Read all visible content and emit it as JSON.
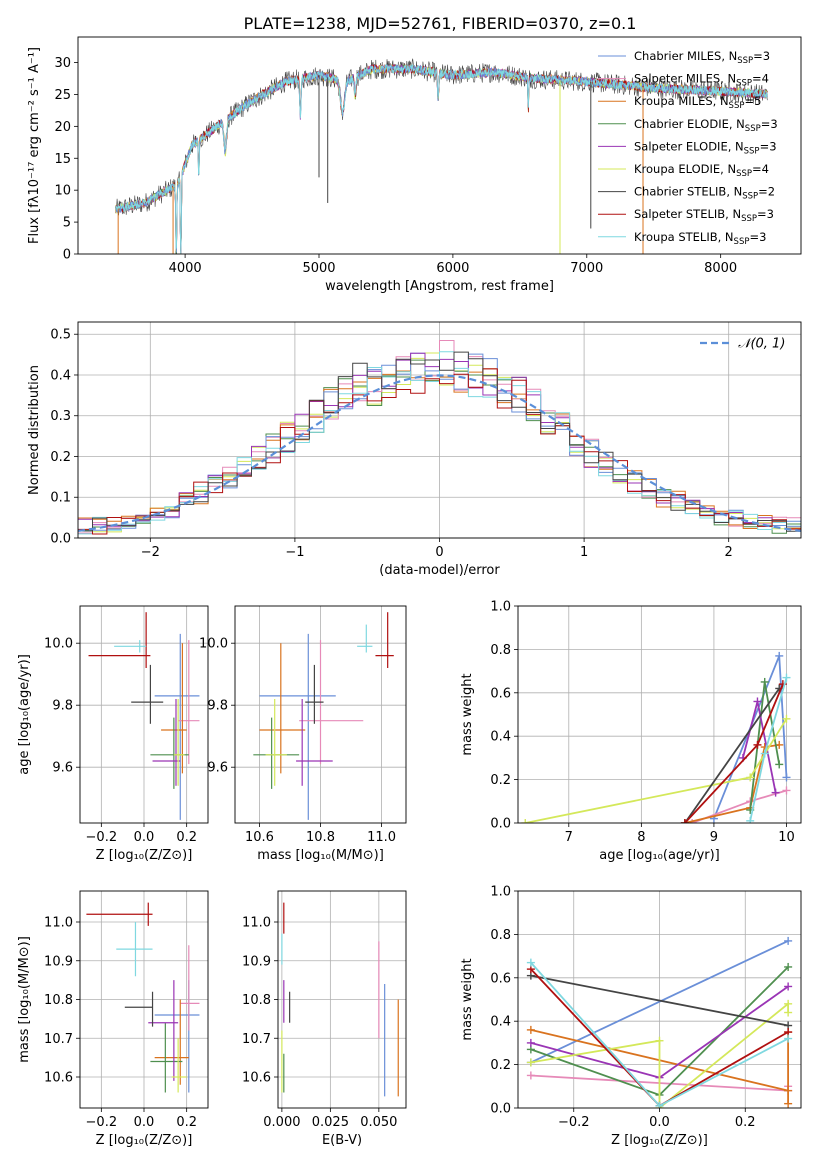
{
  "title": "PLATE=1238, MJD=52761, FIBERID=0370, z=0.1",
  "colors": {
    "Chabrier MILES": "#6a8fd8",
    "Salpeter MILES": "#e68ab8",
    "Kroupa MILES": "#d9731f",
    "Chabrier ELODIE": "#4f8f4f",
    "Salpeter ELODIE": "#9a35b5",
    "Kroupa ELODIE": "#d4e85a",
    "Chabrier STELIB": "#444444",
    "Salpeter STELIB": "#b01010",
    "Kroupa STELIB": "#7fd8e0"
  },
  "chart_data": [
    {
      "id": "spectrum",
      "type": "line",
      "title": "PLATE=1238, MJD=52761, FIBERID=0370, z=0.1",
      "xlabel": "wavelength [Angstrom, rest frame]",
      "ylabel": "Flux [fλ10⁻¹⁷ erg cm⁻² s⁻¹ A⁻¹]",
      "xlim": [
        3200,
        8600
      ],
      "ylim": [
        0,
        34
      ],
      "xticks": [
        4000,
        5000,
        6000,
        7000,
        8000
      ],
      "yticks": [
        0,
        5,
        10,
        15,
        20,
        25,
        30
      ],
      "grid": false,
      "legend_position": "top-right",
      "legend": [
        {
          "name": "Chabrier MILES",
          "n": "3"
        },
        {
          "name": "Salpeter MILES",
          "n": "4"
        },
        {
          "name": "Kroupa MILES",
          "n": "5"
        },
        {
          "name": "Chabrier ELODIE",
          "n": "3"
        },
        {
          "name": "Salpeter ELODIE",
          "n": "3"
        },
        {
          "name": "Kroupa ELODIE",
          "n": "4"
        },
        {
          "name": "Chabrier STELIB",
          "n": "2"
        },
        {
          "name": "Salpeter STELIB",
          "n": "3"
        },
        {
          "name": "Kroupa STELIB",
          "n": "3"
        }
      ],
      "continuum": [
        [
          3480,
          7
        ],
        [
          3700,
          8
        ],
        [
          3950,
          11
        ],
        [
          4050,
          17
        ],
        [
          4300,
          21
        ],
        [
          4500,
          24
        ],
        [
          4750,
          27
        ],
        [
          5000,
          28
        ],
        [
          5200,
          27
        ],
        [
          5400,
          29
        ],
        [
          5700,
          29
        ],
        [
          6000,
          28
        ],
        [
          6300,
          28.5
        ],
        [
          6600,
          27.5
        ],
        [
          7000,
          27
        ],
        [
          7500,
          26
        ],
        [
          8000,
          25.5
        ],
        [
          8350,
          25
        ]
      ],
      "dips": [
        [
          3934,
          3,
          20
        ],
        [
          3968,
          3,
          20
        ],
        [
          4102,
          3,
          6
        ],
        [
          4300,
          10,
          5
        ],
        [
          4861,
          5,
          6
        ],
        [
          5175,
          15,
          5
        ],
        [
          5270,
          5,
          3
        ],
        [
          5890,
          5,
          4
        ],
        [
          6563,
          3,
          5
        ]
      ],
      "spikes": [
        {
          "x": 3500,
          "low": 0
        },
        {
          "x": 3910,
          "low": 0
        },
        {
          "x": 5000,
          "low": 12
        },
        {
          "x": 5065,
          "low": 8
        },
        {
          "x": 6800,
          "low": 0
        },
        {
          "x": 7030,
          "low": 4
        },
        {
          "x": 7420,
          "low": 0
        }
      ]
    },
    {
      "id": "residuals",
      "type": "histogram",
      "xlabel": "(data-model)/error",
      "ylabel": "Normed distribution",
      "xlim": [
        -2.5,
        2.5
      ],
      "ylim": [
        0,
        0.53
      ],
      "xticks": [
        -2,
        -1,
        0,
        1,
        2
      ],
      "yticks": [
        0.0,
        0.1,
        0.2,
        0.3,
        0.4,
        0.5
      ],
      "grid": true,
      "legend_position": "top-right",
      "legend": [
        {
          "label": "𝒩(0, 1)",
          "style": "dashed",
          "color": "#5b8fd8"
        }
      ],
      "bin_width": 0.1,
      "bin_start": -2.5,
      "base": [
        0.03,
        0.03,
        0.03,
        0.04,
        0.05,
        0.06,
        0.07,
        0.09,
        0.11,
        0.13,
        0.15,
        0.17,
        0.19,
        0.22,
        0.25,
        0.27,
        0.3,
        0.33,
        0.36,
        0.38,
        0.37,
        0.38,
        0.4,
        0.4,
        0.42,
        0.43,
        0.41,
        0.4,
        0.39,
        0.37,
        0.35,
        0.33,
        0.3,
        0.27,
        0.24,
        0.21,
        0.18,
        0.16,
        0.14,
        0.12,
        0.1,
        0.09,
        0.07,
        0.06,
        0.05,
        0.05,
        0.04,
        0.04,
        0.03,
        0.03
      ]
    },
    {
      "id": "age_vs_Z",
      "type": "errorbar",
      "xlabel": "Z [log₁₀(Z/Z⊙)]",
      "ylabel": "age  [log₁₀(age/yr)]",
      "xlim": [
        -0.3,
        0.3
      ],
      "ylim": [
        9.42,
        10.12
      ],
      "xticks": [
        -0.2,
        0.0,
        0.2
      ],
      "yticks": [
        9.6,
        9.8,
        10.0
      ],
      "points": [
        {
          "series": "Chabrier MILES",
          "x": 0.17,
          "y": 9.83,
          "xe": [
            0.12,
            0.09
          ],
          "ye": [
            0.4,
            0.2
          ]
        },
        {
          "series": "Salpeter MILES",
          "x": 0.21,
          "y": 9.75,
          "xe": [
            0.05,
            0.05
          ],
          "ye": [
            0.14,
            0.26
          ]
        },
        {
          "series": "Kroupa MILES",
          "x": 0.18,
          "y": 9.72,
          "xe": [
            0.1,
            0.02
          ],
          "ye": [
            0.14,
            0.28
          ]
        },
        {
          "series": "Chabrier ELODIE",
          "x": 0.14,
          "y": 9.64,
          "xe": [
            0.11,
            0.07
          ],
          "ye": [
            0.11,
            0.12
          ]
        },
        {
          "series": "Salpeter ELODIE",
          "x": 0.15,
          "y": 9.62,
          "xe": [
            0.11,
            0.02
          ],
          "ye": [
            0.08,
            0.2
          ]
        },
        {
          "series": "Kroupa ELODIE",
          "x": 0.16,
          "y": 9.64,
          "xe": [
            0.02,
            0.03
          ],
          "ye": [
            0.1,
            0.18
          ]
        },
        {
          "series": "Chabrier STELIB",
          "x": 0.03,
          "y": 9.81,
          "xe": [
            0.09,
            0.06
          ],
          "ye": [
            0.07,
            0.12
          ]
        },
        {
          "series": "Salpeter STELIB",
          "x": 0.01,
          "y": 9.96,
          "xe": [
            0.27,
            0.02
          ],
          "ye": [
            0.04,
            0.14
          ]
        },
        {
          "series": "Kroupa STELIB",
          "x": -0.02,
          "y": 9.99,
          "xe": [
            0.12,
            0.03
          ],
          "ye": [
            0.02,
            0.02
          ]
        }
      ]
    },
    {
      "id": "age_vs_mass",
      "type": "errorbar",
      "xlabel": "mass [log₁₀(M/M⊙)]",
      "ylabel": "",
      "xlim": [
        10.52,
        11.08
      ],
      "ylim": [
        9.42,
        10.12
      ],
      "xticks": [
        10.6,
        10.8,
        11.0
      ],
      "yticks": [
        9.6,
        9.8,
        10.0
      ],
      "points": [
        {
          "series": "Chabrier MILES",
          "x": 10.76,
          "y": 9.83,
          "xe": [
            0.16,
            0.09
          ],
          "ye": [
            0.4,
            0.2
          ]
        },
        {
          "series": "Salpeter MILES",
          "x": 10.8,
          "y": 9.75,
          "xe": [
            0.07,
            0.14
          ],
          "ye": [
            0.14,
            0.26
          ]
        },
        {
          "series": "Kroupa MILES",
          "x": 10.67,
          "y": 9.72,
          "xe": [
            0.07,
            0.08
          ],
          "ye": [
            0.14,
            0.28
          ]
        },
        {
          "series": "Chabrier ELODIE",
          "x": 10.64,
          "y": 9.64,
          "xe": [
            0.06,
            0.09
          ],
          "ye": [
            0.11,
            0.12
          ]
        },
        {
          "series": "Salpeter ELODIE",
          "x": 10.74,
          "y": 9.62,
          "xe": [
            0.02,
            0.1
          ],
          "ye": [
            0.08,
            0.2
          ]
        },
        {
          "series": "Kroupa ELODIE",
          "x": 10.65,
          "y": 9.64,
          "xe": [
            0.03,
            0.04
          ],
          "ye": [
            0.1,
            0.18
          ]
        },
        {
          "series": "Chabrier STELIB",
          "x": 10.78,
          "y": 9.81,
          "xe": [
            0.03,
            0.03
          ],
          "ye": [
            0.07,
            0.12
          ]
        },
        {
          "series": "Salpeter STELIB",
          "x": 11.02,
          "y": 9.96,
          "xe": [
            0.04,
            0.02
          ],
          "ye": [
            0.04,
            0.14
          ]
        },
        {
          "series": "Kroupa STELIB",
          "x": 10.95,
          "y": 9.99,
          "xe": [
            0.03,
            0.02
          ],
          "ye": [
            0.02,
            0.07
          ]
        }
      ]
    },
    {
      "id": "weights_vs_age",
      "type": "line",
      "xlabel": "age  [log₁₀(age/yr)]",
      "ylabel": "mass weight",
      "xlim": [
        6.3,
        10.2
      ],
      "ylim": [
        0,
        1
      ],
      "xticks": [
        7,
        8,
        9,
        10
      ],
      "yticks": [
        0.0,
        0.2,
        0.4,
        0.6,
        0.8,
        1.0
      ],
      "grid": true,
      "series": [
        {
          "name": "Chabrier MILES",
          "x": [
            9.0,
            9.9,
            10.0
          ],
          "y": [
            0.02,
            0.77,
            0.21
          ]
        },
        {
          "name": "Salpeter MILES",
          "x": [
            8.7,
            9.5,
            10.0
          ],
          "y": [
            0.0,
            0.1,
            0.15
          ]
        },
        {
          "name": "Kroupa MILES",
          "x": [
            8.6,
            9.5,
            9.7,
            9.9
          ],
          "y": [
            0.0,
            0.07,
            0.35,
            0.36
          ]
        },
        {
          "name": "Chabrier ELODIE",
          "x": [
            9.5,
            9.7,
            9.9
          ],
          "y": [
            0.06,
            0.65,
            0.27
          ]
        },
        {
          "name": "Salpeter ELODIE",
          "x": [
            9.4,
            9.6,
            9.85
          ],
          "y": [
            0.3,
            0.56,
            0.14
          ]
        },
        {
          "name": "Kroupa ELODIE",
          "x": [
            6.4,
            9.5,
            10.0
          ],
          "y": [
            0.0,
            0.21,
            0.48
          ]
        },
        {
          "name": "Chabrier STELIB",
          "x": [
            8.6,
            9.9
          ],
          "y": [
            0.0,
            0.62
          ]
        },
        {
          "name": "Salpeter STELIB",
          "x": [
            8.6,
            9.6,
            9.95
          ],
          "y": [
            0.0,
            0.36,
            0.64
          ]
        },
        {
          "name": "Kroupa STELIB",
          "x": [
            9.5,
            9.7,
            10.0
          ],
          "y": [
            0.01,
            0.32,
            0.67
          ]
        }
      ]
    },
    {
      "id": "mass_vs_Z",
      "type": "errorbar",
      "xlabel": "Z [log₁₀(Z/Z⊙)]",
      "ylabel": "mass [log₁₀(M/M⊙)]",
      "xlim": [
        -0.3,
        0.3
      ],
      "ylim": [
        10.52,
        11.08
      ],
      "xticks": [
        -0.2,
        0.0,
        0.2
      ],
      "yticks": [
        10.6,
        10.7,
        10.8,
        10.9,
        11.0
      ],
      "points": [
        {
          "series": "Chabrier MILES",
          "x": 0.21,
          "y": 10.76,
          "xe": [
            0.16,
            0.05
          ],
          "ye": [
            0.2,
            0.09
          ]
        },
        {
          "series": "Salpeter MILES",
          "x": 0.21,
          "y": 10.79,
          "xe": [
            0.04,
            0.05
          ],
          "ye": [
            0.07,
            0.15
          ]
        },
        {
          "series": "Kroupa MILES",
          "x": 0.17,
          "y": 10.65,
          "xe": [
            0.12,
            0.04
          ],
          "ye": [
            0.07,
            0.15
          ]
        },
        {
          "series": "Chabrier ELODIE",
          "x": 0.1,
          "y": 10.64,
          "xe": [
            0.07,
            0.08
          ],
          "ye": [
            0.08,
            0.1
          ]
        },
        {
          "series": "Salpeter ELODIE",
          "x": 0.14,
          "y": 10.74,
          "xe": [
            0.12,
            0.02
          ],
          "ye": [
            0.15,
            0.11
          ]
        },
        {
          "series": "Kroupa ELODIE",
          "x": 0.16,
          "y": 10.6,
          "xe": [
            0.03,
            0.04
          ],
          "ye": [
            0.04,
            0.1
          ]
        },
        {
          "series": "Chabrier STELIB",
          "x": 0.04,
          "y": 10.78,
          "xe": [
            0.13,
            0.0
          ],
          "ye": [
            0.05,
            0.04
          ]
        },
        {
          "series": "Salpeter STELIB",
          "x": 0.02,
          "y": 11.02,
          "xe": [
            0.29,
            0.02
          ],
          "ye": [
            0.03,
            0.03
          ]
        },
        {
          "series": "Kroupa STELIB",
          "x": -0.04,
          "y": 10.93,
          "xe": [
            0.09,
            0.08
          ],
          "ye": [
            0.07,
            0.07
          ]
        }
      ]
    },
    {
      "id": "mass_vs_EBV",
      "type": "errorbar",
      "xlabel": "E(B-V)",
      "ylabel": "",
      "xlim": [
        -0.002,
        0.064
      ],
      "ylim": [
        10.52,
        11.08
      ],
      "xticks": [
        0.0,
        0.025,
        0.05
      ],
      "yticks": [
        10.6,
        10.7,
        10.8,
        10.9,
        11.0
      ],
      "points": [
        {
          "series": "Chabrier MILES",
          "x": 0.053,
          "y": 10.7,
          "xe": [
            0,
            0
          ],
          "ye": [
            0.15,
            0.14
          ]
        },
        {
          "series": "Salpeter MILES",
          "x": 0.05,
          "y": 10.8,
          "xe": [
            0,
            0
          ],
          "ye": [
            0.1,
            0.15
          ]
        },
        {
          "series": "Kroupa MILES",
          "x": 0.06,
          "y": 10.68,
          "xe": [
            0,
            0
          ],
          "ye": [
            0.13,
            0.12
          ]
        },
        {
          "series": "Chabrier ELODIE",
          "x": 0.001,
          "y": 10.62,
          "xe": [
            0,
            0
          ],
          "ye": [
            0.06,
            0.04
          ]
        },
        {
          "series": "Salpeter ELODIE",
          "x": 0.001,
          "y": 10.78,
          "xe": [
            0,
            0
          ],
          "ye": [
            0.04,
            0.07
          ]
        },
        {
          "series": "Kroupa ELODIE",
          "x": 0.0,
          "y": 10.65,
          "xe": [
            0,
            0
          ],
          "ye": [
            0.09,
            0.07
          ]
        },
        {
          "series": "Chabrier STELIB",
          "x": 0.004,
          "y": 10.78,
          "xe": [
            0,
            0
          ],
          "ye": [
            0.04,
            0.04
          ]
        },
        {
          "series": "Salpeter STELIB",
          "x": 0.001,
          "y": 11.0,
          "xe": [
            0,
            0
          ],
          "ye": [
            0.03,
            0.05
          ]
        },
        {
          "series": "Kroupa STELIB",
          "x": 0.0,
          "y": 10.93,
          "xe": [
            0,
            0
          ],
          "ye": [
            0.04,
            0.04
          ]
        }
      ]
    },
    {
      "id": "weights_vs_Z",
      "type": "line",
      "xlabel": "Z [log₁₀(Z/Z⊙)]",
      "ylabel": "mass weight",
      "xlim": [
        -0.33,
        0.33
      ],
      "ylim": [
        0,
        1
      ],
      "xticks": [
        -0.2,
        0.0,
        0.2
      ],
      "yticks": [
        0.0,
        0.2,
        0.4,
        0.6,
        0.8,
        1.0
      ],
      "grid": true,
      "series": [
        {
          "name": "Chabrier MILES",
          "x": [
            -0.3,
            0.3
          ],
          "y": [
            0.21,
            0.77
          ]
        },
        {
          "name": "Salpeter MILES",
          "x": [
            -0.3,
            0.3,
            0.3
          ],
          "y": [
            0.15,
            0.08,
            0.1
          ]
        },
        {
          "name": "Kroupa MILES",
          "x": [
            -0.3,
            0.3,
            0.3,
            0.3
          ],
          "y": [
            0.36,
            0.08,
            0.35,
            0.02
          ]
        },
        {
          "name": "Chabrier ELODIE",
          "x": [
            -0.3,
            0.0,
            0.3
          ],
          "y": [
            0.27,
            0.06,
            0.65
          ]
        },
        {
          "name": "Salpeter ELODIE",
          "x": [
            -0.3,
            0.0,
            0.3
          ],
          "y": [
            0.3,
            0.14,
            0.56
          ]
        },
        {
          "name": "Kroupa ELODIE",
          "x": [
            -0.3,
            0.0,
            0.0,
            0.3,
            0.3
          ],
          "y": [
            0.21,
            0.31,
            0.0,
            0.48,
            0.44
          ]
        },
        {
          "name": "Chabrier STELIB",
          "x": [
            -0.3,
            0.3
          ],
          "y": [
            0.61,
            0.38
          ]
        },
        {
          "name": "Salpeter STELIB",
          "x": [
            -0.3,
            0.0,
            0.3
          ],
          "y": [
            0.64,
            0.01,
            0.35
          ]
        },
        {
          "name": "Kroupa STELIB",
          "x": [
            -0.3,
            0.0,
            0.3
          ],
          "y": [
            0.67,
            0.01,
            0.32
          ]
        }
      ]
    }
  ]
}
